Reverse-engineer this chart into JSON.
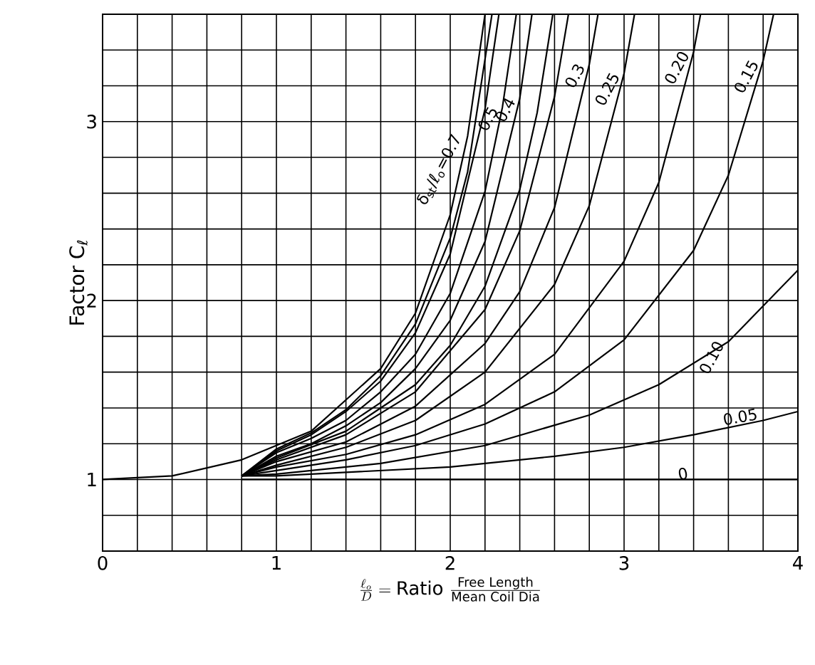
{
  "chart_data": {
    "type": "line",
    "xlabel": "\\frac{\\ell_o}{D} = \\text{Ratio}\\ \\frac{\\text{Free Length}}{\\text{Mean Coil Dia}}",
    "ylabel": "Factor C$_{ℓ}$",
    "xlim": [
      0,
      4
    ],
    "ylim": [
      0.6,
      3.6
    ],
    "xticks": [
      0,
      {
        "value": 0.2,
        "label": null
      },
      {
        "value": 0.4,
        "label": null
      },
      {
        "value": 0.6,
        "label": null
      },
      {
        "value": 0.8,
        "label": null
      },
      1,
      {
        "value": 1.2,
        "label": null
      },
      {
        "value": 1.4,
        "label": null
      },
      {
        "value": 1.6,
        "label": null
      },
      {
        "value": 1.8,
        "label": null
      },
      2,
      {
        "value": 2.2,
        "label": null
      },
      {
        "value": 2.4,
        "label": null
      },
      {
        "value": 2.6,
        "label": null
      },
      {
        "value": 2.8,
        "label": null
      },
      3,
      {
        "value": 3.2,
        "label": null
      },
      {
        "value": 3.4,
        "label": null
      },
      {
        "value": 3.6,
        "label": null
      },
      {
        "value": 3.8,
        "label": null
      },
      4
    ],
    "yticks": [
      {
        "value": 0.6,
        "label": null
      },
      {
        "value": 0.8,
        "label": null
      },
      1,
      {
        "value": 1.2,
        "label": null
      },
      {
        "value": 1.4,
        "label": null
      },
      {
        "value": 1.6,
        "label": null
      },
      {
        "value": 1.8,
        "label": null
      },
      2,
      {
        "value": 2.2,
        "label": null
      },
      {
        "value": 2.4,
        "label": null
      },
      {
        "value": 2.6,
        "label": null
      },
      {
        "value": 2.8,
        "label": null
      },
      3,
      {
        "value": 3.2,
        "label": null
      },
      {
        "value": 3.4,
        "label": null
      },
      {
        "value": 3.6,
        "label": null
      }
    ],
    "grid": true,
    "marker": "none",
    "line_style": "solid",
    "series": [
      {
        "name": "δ$_{st}$/ℓ$_{o}$=0.7",
        "color": "#000000",
        "x": [
          0,
          0.4,
          0.8,
          1.2,
          1.6,
          1.8,
          2.0,
          2.1,
          2.2
        ],
        "values": [
          1,
          1.02,
          1.11,
          1.27,
          1.62,
          1.93,
          2.48,
          2.92,
          3.6
        ]
      },
      {
        "color": "#000000",
        "x": [
          0.8,
          1.0,
          1.2,
          1.4,
          1.6,
          1.8,
          2.0,
          2.1,
          2.24
        ],
        "values": [
          1.02,
          1.17,
          1.26,
          1.39,
          1.58,
          1.87,
          2.35,
          2.72,
          3.6
        ]
      },
      {
        "color": "#000000",
        "x": [
          0.8,
          1.0,
          1.2,
          1.4,
          1.6,
          1.8,
          2.0,
          2.2,
          2.28
        ],
        "values": [
          1.02,
          1.16,
          1.25,
          1.38,
          1.55,
          1.82,
          2.26,
          3.07,
          3.6
        ]
      },
      {
        "name": "0.5",
        "color": "#000000",
        "x": [
          0.8,
          1.0,
          1.2,
          1.4,
          1.6,
          1.8,
          2.0,
          2.2,
          2.3,
          2.38
        ],
        "values": [
          1.02,
          1.15,
          1.23,
          1.33,
          1.49,
          1.7,
          2.04,
          2.61,
          3.08,
          3.6
        ]
      },
      {
        "name": "0.4",
        "color": "#000000",
        "x": [
          0.8,
          1.0,
          1.2,
          1.4,
          1.6,
          1.8,
          2.0,
          2.2,
          2.4,
          2.47
        ],
        "values": [
          1.02,
          1.13,
          1.2,
          1.3,
          1.43,
          1.62,
          1.89,
          2.33,
          3.13,
          3.6
        ]
      },
      {
        "color": "#000000",
        "x": [
          0.8,
          1.0,
          1.4,
          1.8,
          2.0,
          2.2,
          2.4,
          2.5,
          2.59
        ],
        "values": [
          1.02,
          1.12,
          1.27,
          1.53,
          1.75,
          2.08,
          2.62,
          3.05,
          3.6
        ]
      },
      {
        "color": "#000000",
        "x": [
          0.8,
          1.0,
          1.4,
          1.8,
          2.2,
          2.4,
          2.6,
          2.68
        ],
        "values": [
          1.02,
          1.11,
          1.25,
          1.49,
          1.95,
          2.39,
          3.14,
          3.6
        ]
      },
      {
        "name": "0.3",
        "color": "#000000",
        "x": [
          0.8,
          1.0,
          1.4,
          1.8,
          2.2,
          2.4,
          2.6,
          2.8,
          2.85
        ],
        "values": [
          1.02,
          1.1,
          1.21,
          1.41,
          1.76,
          2.05,
          2.52,
          3.32,
          3.6
        ]
      },
      {
        "name": "0.25",
        "color": "#000000",
        "x": [
          0.8,
          1.0,
          1.4,
          1.8,
          2.2,
          2.6,
          2.8,
          3.0,
          3.06
        ],
        "values": [
          1.02,
          1.08,
          1.18,
          1.33,
          1.6,
          2.09,
          2.53,
          3.27,
          3.6
        ]
      },
      {
        "name": "0.20",
        "color": "#000000",
        "x": [
          0.8,
          1.0,
          1.4,
          1.8,
          2.2,
          2.6,
          3.0,
          3.2,
          3.4,
          3.44
        ],
        "values": [
          1.02,
          1.07,
          1.14,
          1.25,
          1.42,
          1.7,
          2.22,
          2.66,
          3.39,
          3.6
        ]
      },
      {
        "name": "0.15",
        "color": "#000000",
        "x": [
          0.8,
          1.0,
          1.4,
          1.8,
          2.2,
          2.6,
          3.0,
          3.4,
          3.6,
          3.8,
          3.86
        ],
        "values": [
          1.02,
          1.05,
          1.11,
          1.19,
          1.31,
          1.49,
          1.78,
          2.28,
          2.7,
          3.34,
          3.6
        ]
      },
      {
        "name": "0.10",
        "color": "#000000",
        "x": [
          0.8,
          1.0,
          1.6,
          2.2,
          2.8,
          3.2,
          3.6,
          4.0
        ],
        "values": [
          1.02,
          1.03,
          1.09,
          1.19,
          1.36,
          1.53,
          1.77,
          2.17
        ]
      },
      {
        "name": "0.05",
        "color": "#000000",
        "x": [
          0.8,
          1.0,
          2.0,
          2.6,
          3.0,
          3.4,
          3.8,
          4.0
        ],
        "values": [
          1.02,
          1.02,
          1.07,
          1.13,
          1.18,
          1.25,
          1.33,
          1.38
        ]
      },
      {
        "name": "0",
        "color": "#000000",
        "x": [
          0.8,
          2.0,
          3.4,
          4.0
        ],
        "values": [
          1.0,
          1.0,
          1.0,
          1.0
        ]
      }
    ]
  }
}
